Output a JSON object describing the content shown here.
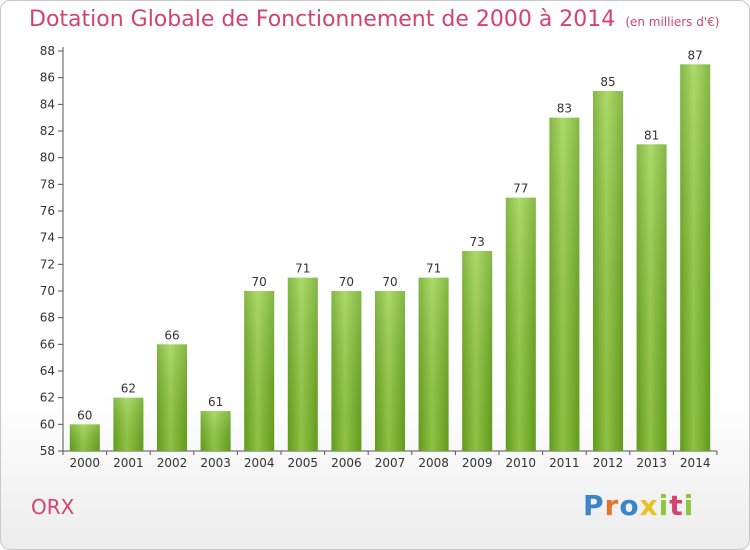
{
  "title": "Dotation Globale de Fonctionnement de 2000 à 2014",
  "subtitle": "(en milliers d'€)",
  "commune": "ORX",
  "logo": {
    "letters": [
      {
        "char": "P",
        "color": "#3a86c8"
      },
      {
        "char": "r",
        "color": "#e8732a"
      },
      {
        "char": "o",
        "color": "#3a86c8"
      },
      {
        "char": "x",
        "color": "#e8c12a"
      },
      {
        "char": "i",
        "color": "#8cc63f"
      },
      {
        "char": "t",
        "color": "#d44370"
      },
      {
        "char": "i",
        "color": "#8cc63f"
      }
    ]
  },
  "chart_data": {
    "type": "bar",
    "categories": [
      "2000",
      "2001",
      "2002",
      "2003",
      "2004",
      "2005",
      "2006",
      "2007",
      "2008",
      "2009",
      "2010",
      "2011",
      "2012",
      "2013",
      "2014"
    ],
    "values": [
      60,
      62,
      66,
      61,
      70,
      71,
      70,
      70,
      71,
      73,
      77,
      83,
      85,
      81,
      87
    ],
    "ylim": [
      58,
      88
    ],
    "yticks": [
      58,
      60,
      62,
      64,
      66,
      68,
      70,
      72,
      74,
      76,
      78,
      80,
      82,
      84,
      86,
      88
    ],
    "grid": false,
    "bar_color": "#7cbf2a",
    "title": "Dotation Globale de Fonctionnement de 2000 à 2014",
    "subtitle": "(en milliers d'€)"
  }
}
